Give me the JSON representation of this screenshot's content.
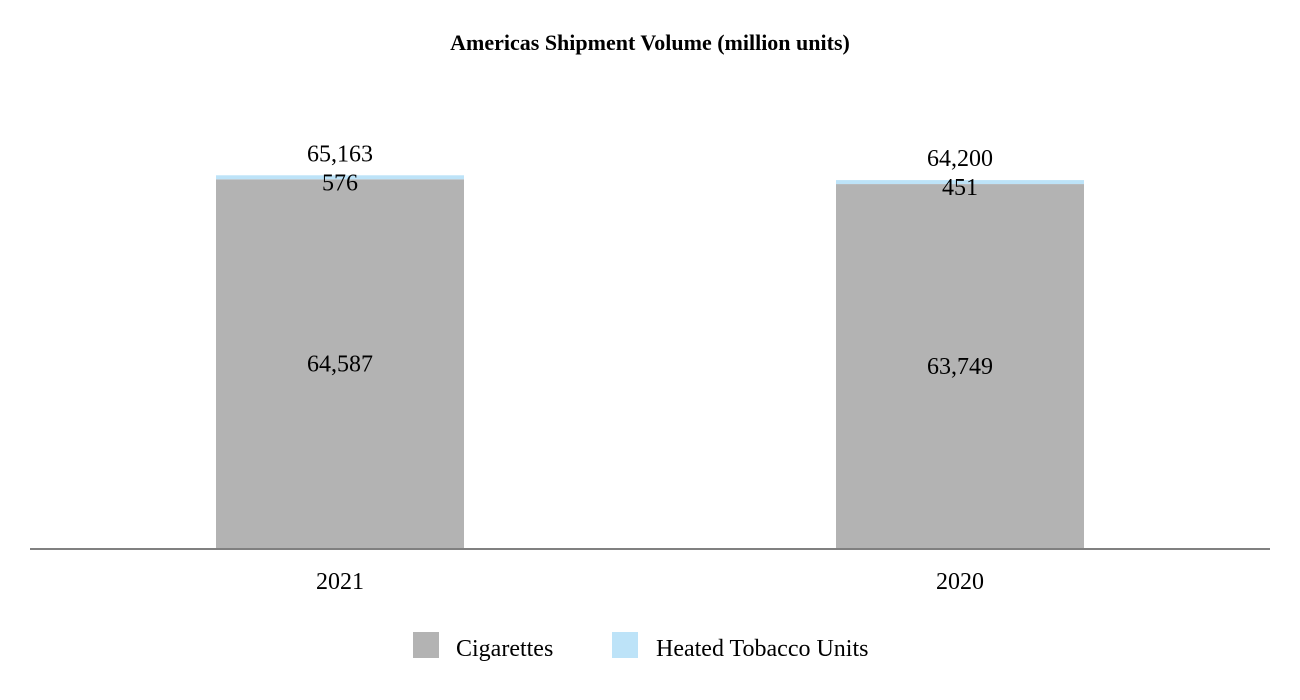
{
  "chart_data": {
    "type": "bar",
    "stacked": true,
    "title": "Americas Shipment Volume (million units)",
    "categories": [
      "2021",
      "2020"
    ],
    "series": [
      {
        "name": "Cigarettes",
        "values": [
          64587,
          63749
        ],
        "color": "#b3b3b3",
        "value_labels": [
          "64,587",
          "63,749"
        ]
      },
      {
        "name": "Heated Tobacco Units",
        "values": [
          576,
          451
        ],
        "color": "#bde3f8",
        "value_labels": [
          "576",
          "451"
        ]
      }
    ],
    "totals": [
      65163,
      64200
    ],
    "total_labels": [
      "65,163",
      "64,200"
    ],
    "xlabel": "",
    "ylabel": "",
    "legend_position": "bottom-center",
    "grid": false
  }
}
